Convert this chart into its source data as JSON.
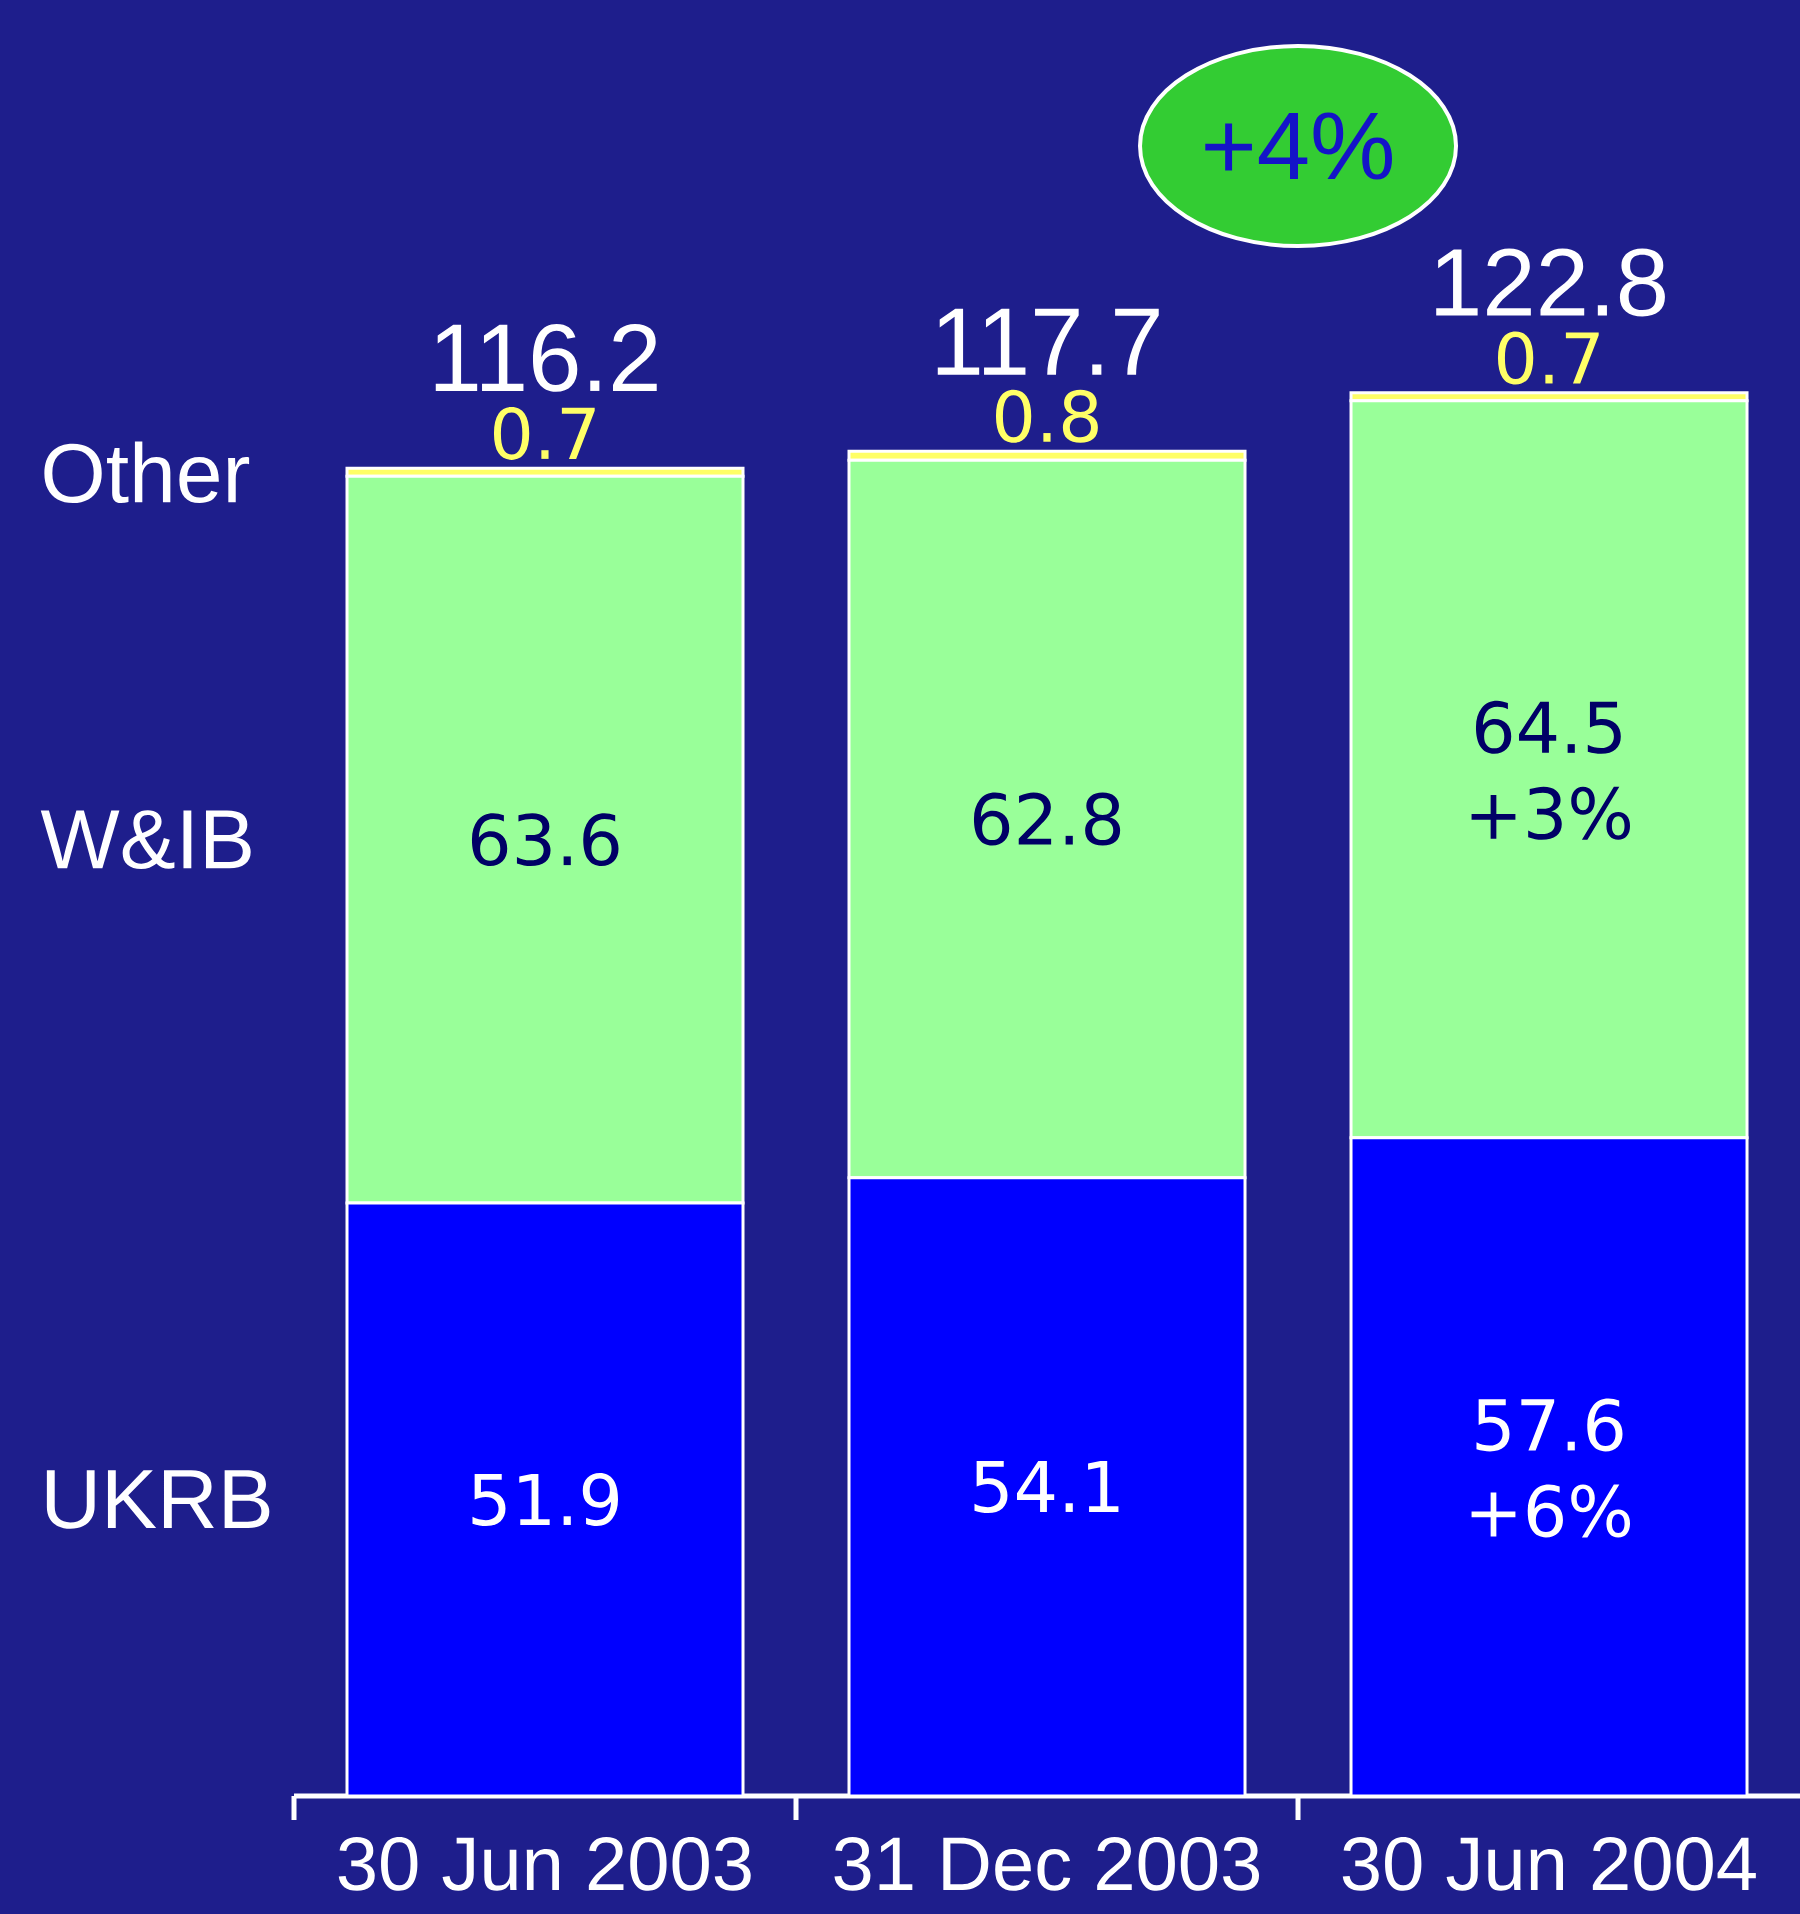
{
  "chart_data": {
    "type": "bar",
    "stacked": true,
    "categories": [
      "30 Jun 2003",
      "31 Dec 2003",
      "30 Jun 2004"
    ],
    "series": [
      {
        "name": "UKRB",
        "color": "#0000ff",
        "values": [
          51.9,
          54.1,
          57.6
        ]
      },
      {
        "name": "W&IB",
        "color": "#99ff99",
        "values": [
          63.6,
          62.8,
          64.5
        ]
      },
      {
        "name": "Other",
        "color": "#ffff66",
        "values": [
          0.7,
          0.8,
          0.7
        ]
      }
    ],
    "data_labels": true,
    "totals": [
      "116.2",
      "117.7",
      "122.8"
    ],
    "annotations": [
      "+4%",
      "+3%",
      "+6%"
    ],
    "tick_labels": "x"
  }
}
